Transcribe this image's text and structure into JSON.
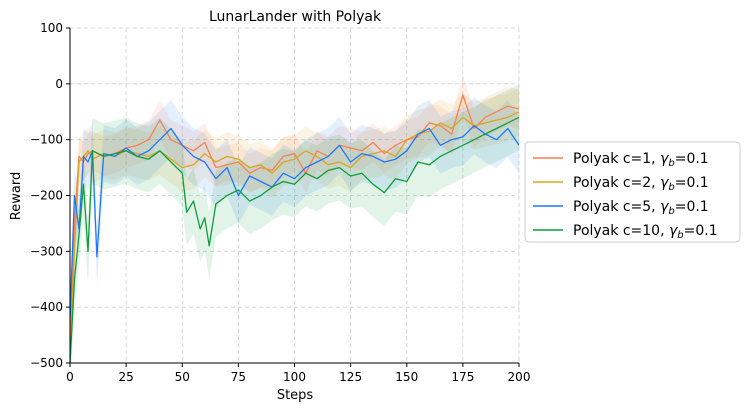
{
  "chart_data": {
    "type": "line",
    "title": "LunarLander with Polyak",
    "xlabel": "Steps",
    "ylabel": "Reward",
    "xlim": [
      0,
      200
    ],
    "ylim": [
      -500,
      100
    ],
    "xticks": [
      "0",
      "25",
      "50",
      "75",
      "100",
      "125",
      "150",
      "175",
      "200"
    ],
    "yticks": [
      "100",
      "0",
      "−100",
      "−200",
      "−300",
      "−400",
      "−500"
    ],
    "grid": true,
    "legend_position": "outside-right",
    "series": [
      {
        "name": "Polyak c=1, γb=0.1",
        "label_main": "Polyak c=1, ",
        "label_gamma": "γ",
        "label_sub": "b",
        "label_tail": "=0.1",
        "color": "#ff7f50",
        "x": [
          0,
          2,
          4,
          6,
          8,
          10,
          15,
          20,
          25,
          30,
          35,
          40,
          45,
          50,
          55,
          60,
          65,
          70,
          75,
          80,
          85,
          90,
          95,
          100,
          105,
          110,
          115,
          120,
          125,
          130,
          135,
          140,
          145,
          150,
          155,
          160,
          165,
          170,
          175,
          180,
          185,
          190,
          195,
          200
        ],
        "y": [
          -450,
          -250,
          -130,
          -140,
          -125,
          -120,
          -130,
          -125,
          -115,
          -110,
          -100,
          -65,
          -100,
          -110,
          -120,
          -105,
          -150,
          -145,
          -140,
          -160,
          -150,
          -155,
          -130,
          -125,
          -160,
          -120,
          -130,
          -110,
          -115,
          -120,
          -105,
          -125,
          -110,
          -100,
          -95,
          -70,
          -75,
          -90,
          -20,
          -80,
          -60,
          -50,
          -40,
          -45
        ]
      },
      {
        "name": "Polyak c=2, γb=0.1",
        "label_main": "Polyak c=2, ",
        "label_gamma": "γ",
        "label_sub": "b",
        "label_tail": "=0.1",
        "color": "#daa520",
        "x": [
          0,
          2,
          4,
          6,
          8,
          10,
          15,
          20,
          25,
          30,
          35,
          40,
          45,
          50,
          55,
          60,
          65,
          70,
          75,
          80,
          85,
          90,
          95,
          100,
          105,
          110,
          115,
          120,
          125,
          130,
          135,
          140,
          145,
          150,
          155,
          160,
          165,
          170,
          175,
          180,
          185,
          190,
          195,
          200
        ],
        "y": [
          -490,
          -300,
          -140,
          -130,
          -120,
          -135,
          -125,
          -130,
          -120,
          -125,
          -130,
          -120,
          -135,
          -150,
          -145,
          -125,
          -140,
          -130,
          -135,
          -150,
          -145,
          -160,
          -140,
          -135,
          -120,
          -130,
          -145,
          -140,
          -150,
          -130,
          -125,
          -120,
          -130,
          -100,
          -90,
          -85,
          -70,
          -80,
          -60,
          -75,
          -70,
          -65,
          -60,
          -50
        ]
      },
      {
        "name": "Polyak c=5, γb=0.1",
        "label_main": "Polyak c=5, ",
        "label_gamma": "γ",
        "label_sub": "b",
        "label_tail": "=0.1",
        "color": "#1e78ff",
        "x": [
          0,
          2,
          4,
          6,
          8,
          10,
          12,
          15,
          20,
          25,
          30,
          35,
          40,
          45,
          50,
          55,
          60,
          65,
          70,
          75,
          80,
          85,
          90,
          95,
          100,
          105,
          110,
          115,
          120,
          125,
          130,
          135,
          140,
          145,
          150,
          155,
          160,
          165,
          170,
          175,
          180,
          185,
          190,
          195,
          200
        ],
        "y": [
          -420,
          -200,
          -260,
          -130,
          -140,
          -120,
          -310,
          -125,
          -130,
          -115,
          -130,
          -120,
          -100,
          -80,
          -110,
          -130,
          -140,
          -170,
          -150,
          -200,
          -165,
          -175,
          -185,
          -160,
          -170,
          -150,
          -140,
          -130,
          -110,
          -140,
          -125,
          -130,
          -140,
          -135,
          -120,
          -90,
          -80,
          -110,
          -100,
          -95,
          -75,
          -90,
          -100,
          -80,
          -110
        ]
      },
      {
        "name": "Polyak c=10, γb=0.1",
        "label_main": "Polyak c=10, ",
        "label_gamma": "γ",
        "label_sub": "b",
        "label_tail": "=0.1",
        "color": "#119c3c",
        "x": [
          0,
          2,
          4,
          6,
          8,
          10,
          15,
          20,
          25,
          30,
          35,
          40,
          45,
          50,
          52,
          55,
          58,
          60,
          62,
          65,
          70,
          75,
          80,
          85,
          90,
          95,
          100,
          105,
          110,
          115,
          120,
          125,
          130,
          135,
          140,
          145,
          150,
          155,
          160,
          165,
          170,
          175,
          180,
          185,
          190,
          195,
          200
        ],
        "y": [
          -500,
          -350,
          -270,
          -180,
          -300,
          -120,
          -130,
          -125,
          -120,
          -130,
          -135,
          -120,
          -140,
          -160,
          -230,
          -210,
          -260,
          -240,
          -290,
          -215,
          -200,
          -190,
          -210,
          -200,
          -185,
          -175,
          -180,
          -160,
          -170,
          -155,
          -150,
          -165,
          -160,
          -180,
          -195,
          -170,
          -175,
          -140,
          -145,
          -130,
          -120,
          -110,
          -100,
          -90,
          -80,
          -70,
          -60
        ]
      }
    ]
  }
}
